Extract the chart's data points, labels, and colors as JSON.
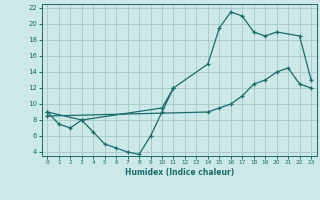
{
  "bg_color": "#cce8e8",
  "grid_color": "#aacccc",
  "line_color": "#1a6b6b",
  "xlabel": "Humidex (Indice chaleur)",
  "xlim": [
    -0.5,
    23.5
  ],
  "ylim": [
    3.5,
    22.5
  ],
  "xticks": [
    0,
    1,
    2,
    3,
    4,
    5,
    6,
    7,
    8,
    9,
    10,
    11,
    12,
    13,
    14,
    15,
    16,
    17,
    18,
    19,
    20,
    21,
    22,
    23
  ],
  "yticks": [
    4,
    6,
    8,
    10,
    12,
    14,
    16,
    18,
    20,
    22
  ],
  "line1_x": [
    0,
    1,
    2,
    3,
    4,
    5,
    6,
    7,
    8,
    9,
    10,
    11
  ],
  "line1_y": [
    9,
    7.5,
    7,
    8,
    6.5,
    5,
    4.5,
    4,
    3.7,
    6,
    9,
    12
  ],
  "line2_x": [
    0,
    3,
    10,
    11,
    14,
    15,
    16,
    17,
    18,
    19,
    20,
    22,
    23
  ],
  "line2_y": [
    9,
    8,
    9.5,
    12,
    15,
    19.5,
    21.5,
    21,
    19,
    18.5,
    19,
    18.5,
    13
  ],
  "line3_x": [
    0,
    14,
    15,
    16,
    17,
    18,
    19,
    20,
    21,
    22,
    23
  ],
  "line3_y": [
    8.5,
    9,
    9.5,
    10,
    11,
    12.5,
    13,
    14,
    14.5,
    12.5,
    12
  ]
}
